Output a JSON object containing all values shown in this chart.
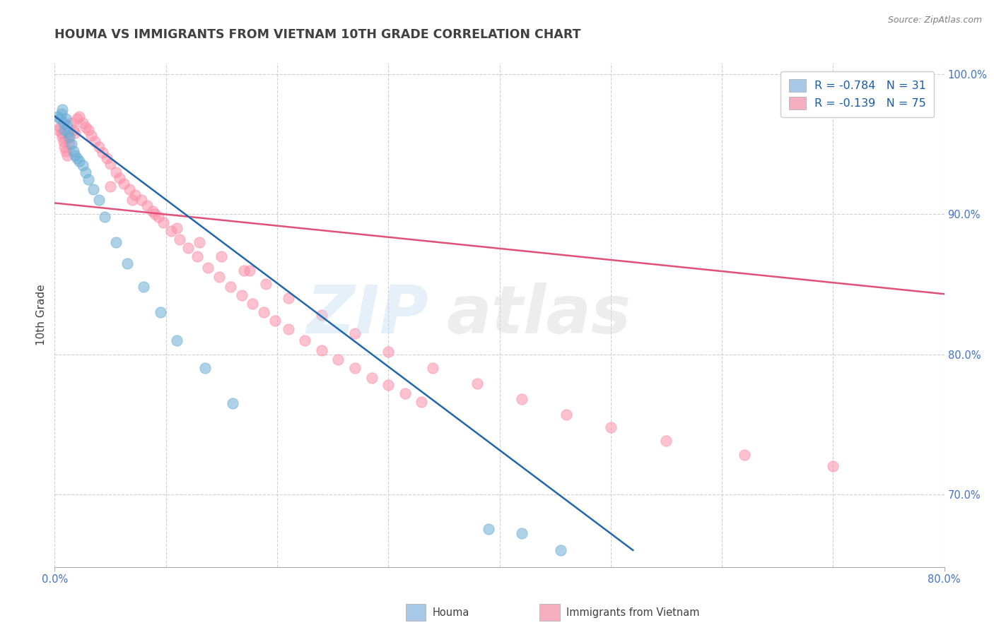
{
  "title": "HOUMA VS IMMIGRANTS FROM VIETNAM 10TH GRADE CORRELATION CHART",
  "source_text": "Source: ZipAtlas.com",
  "ylabel": "10th Grade",
  "xlim": [
    0.0,
    0.8
  ],
  "ylim": [
    0.648,
    1.008
  ],
  "ytick_labels": [
    "100.0%",
    "90.0%",
    "80.0%",
    "70.0%"
  ],
  "ytick_positions": [
    1.0,
    0.9,
    0.8,
    0.7
  ],
  "watermark_zip": "ZIP",
  "watermark_atlas": "atlas",
  "legend_entries": [
    {
      "label": "R = -0.784   N = 31",
      "color": "#a8c8e8"
    },
    {
      "label": "R = -0.139   N = 75",
      "color": "#f4b0c0"
    }
  ],
  "blue_scatter_x": [
    0.003,
    0.005,
    0.006,
    0.007,
    0.008,
    0.009,
    0.01,
    0.011,
    0.012,
    0.013,
    0.015,
    0.017,
    0.018,
    0.02,
    0.022,
    0.025,
    0.028,
    0.03,
    0.035,
    0.04,
    0.045,
    0.055,
    0.065,
    0.08,
    0.095,
    0.11,
    0.135,
    0.16,
    0.39,
    0.42,
    0.455
  ],
  "blue_scatter_y": [
    0.97,
    0.968,
    0.972,
    0.975,
    0.965,
    0.96,
    0.968,
    0.963,
    0.958,
    0.955,
    0.95,
    0.945,
    0.942,
    0.94,
    0.938,
    0.935,
    0.93,
    0.925,
    0.918,
    0.91,
    0.898,
    0.88,
    0.865,
    0.848,
    0.83,
    0.81,
    0.79,
    0.765,
    0.675,
    0.672,
    0.66
  ],
  "pink_scatter_x": [
    0.003,
    0.005,
    0.006,
    0.007,
    0.008,
    0.009,
    0.01,
    0.011,
    0.012,
    0.013,
    0.015,
    0.017,
    0.018,
    0.02,
    0.022,
    0.025,
    0.028,
    0.03,
    0.033,
    0.036,
    0.04,
    0.043,
    0.047,
    0.05,
    0.055,
    0.058,
    0.062,
    0.067,
    0.072,
    0.078,
    0.083,
    0.088,
    0.093,
    0.098,
    0.105,
    0.112,
    0.12,
    0.128,
    0.138,
    0.148,
    0.158,
    0.168,
    0.178,
    0.188,
    0.198,
    0.21,
    0.225,
    0.24,
    0.255,
    0.27,
    0.285,
    0.3,
    0.315,
    0.33,
    0.05,
    0.07,
    0.09,
    0.11,
    0.13,
    0.15,
    0.17,
    0.19,
    0.21,
    0.24,
    0.27,
    0.3,
    0.34,
    0.38,
    0.42,
    0.46,
    0.5,
    0.55,
    0.62,
    0.7,
    0.175
  ],
  "pink_scatter_y": [
    0.96,
    0.962,
    0.958,
    0.955,
    0.952,
    0.948,
    0.945,
    0.942,
    0.955,
    0.95,
    0.965,
    0.96,
    0.958,
    0.968,
    0.97,
    0.965,
    0.962,
    0.96,
    0.956,
    0.952,
    0.948,
    0.944,
    0.94,
    0.936,
    0.93,
    0.926,
    0.922,
    0.918,
    0.914,
    0.91,
    0.906,
    0.902,
    0.898,
    0.894,
    0.888,
    0.882,
    0.876,
    0.87,
    0.862,
    0.855,
    0.848,
    0.842,
    0.836,
    0.83,
    0.824,
    0.818,
    0.81,
    0.803,
    0.796,
    0.79,
    0.783,
    0.778,
    0.772,
    0.766,
    0.92,
    0.91,
    0.9,
    0.89,
    0.88,
    0.87,
    0.86,
    0.85,
    0.84,
    0.828,
    0.815,
    0.802,
    0.79,
    0.779,
    0.768,
    0.757,
    0.748,
    0.738,
    0.728,
    0.72,
    0.86
  ],
  "blue_line_x": [
    0.0,
    0.52
  ],
  "blue_line_y": [
    0.97,
    0.66
  ],
  "pink_line_x": [
    0.0,
    0.8
  ],
  "pink_line_y": [
    0.908,
    0.843
  ],
  "blue_color": "#6baed6",
  "pink_color": "#fc8fa8",
  "blue_line_color": "#2166ac",
  "pink_line_color": "#e0507a",
  "grid_color": "#d0d0d0",
  "background_color": "#ffffff",
  "title_color": "#404040",
  "source_color": "#808080",
  "axis_label_color": "#404040",
  "tick_color_blue": "#4472c4"
}
